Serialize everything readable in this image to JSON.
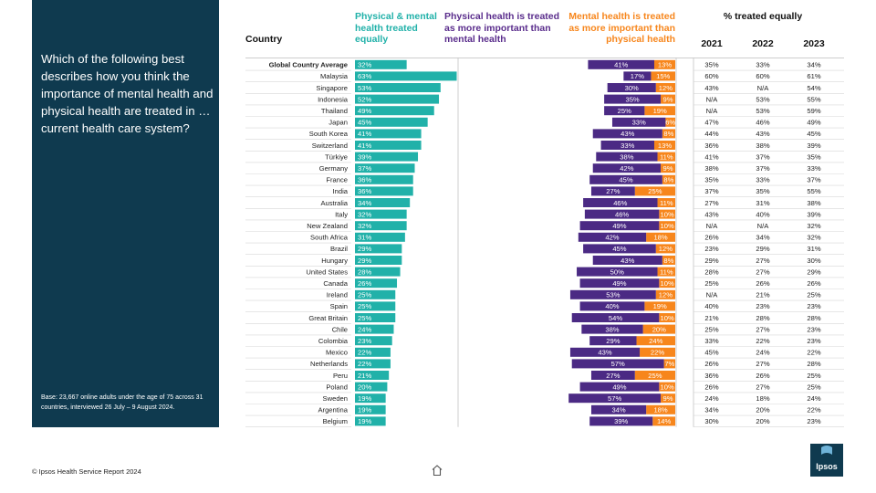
{
  "question": "Which of the following best describes how you think the importance of mental health and physical health are treated in … current health care system?",
  "base_note": "Base: 23,667 online adults under the age of 75 across 31 countries, interviewed 26 July – 9 August 2024.",
  "footer": "© Ipsos Health Service Report 2024",
  "logo_text": "Ipsos",
  "colors": {
    "equal": "#21b1a9",
    "physical": "#4b2a84",
    "mental": "#f7861c",
    "panel": "#0f3a4f"
  },
  "headers": {
    "country": "Country",
    "equal": "Physical & mental health treated equally",
    "physical": "Physical health is treated as more important than mental health",
    "mental": "Mental health is treated as more important than physical health",
    "pct_equal": "% treated equally",
    "years": [
      "2021",
      "2022",
      "2023"
    ]
  },
  "chart_data": {
    "type": "bar",
    "categories": [
      "Global Country Average",
      "Malaysia",
      "Singapore",
      "Indonesia",
      "Thailand",
      "Japan",
      "South Korea",
      "Switzerland",
      "Türkiye",
      "Germany",
      "France",
      "India",
      "Australia",
      "Italy",
      "New Zealand",
      "South Africa",
      "Brazil",
      "Hungary",
      "United States",
      "Canada",
      "Ireland",
      "Spain",
      "Great Britain",
      "Chile",
      "Colombia",
      "Mexico",
      "Netherlands",
      "Peru",
      "Poland",
      "Sweden",
      "Argentina",
      "Belgium"
    ],
    "series": [
      {
        "name": "Physical & mental health treated equally",
        "values": [
          32,
          63,
          53,
          52,
          49,
          45,
          41,
          41,
          39,
          37,
          36,
          36,
          34,
          32,
          32,
          31,
          29,
          29,
          28,
          26,
          25,
          25,
          25,
          24,
          23,
          22,
          22,
          21,
          20,
          19,
          19,
          19
        ]
      },
      {
        "name": "Physical health is treated as more important than mental health",
        "values": [
          41,
          17,
          30,
          35,
          25,
          33,
          43,
          33,
          38,
          42,
          45,
          27,
          46,
          46,
          49,
          42,
          45,
          43,
          50,
          49,
          53,
          40,
          54,
          38,
          29,
          43,
          57,
          27,
          49,
          57,
          34,
          39
        ]
      },
      {
        "name": "Mental health is treated as more important than physical health",
        "values": [
          13,
          15,
          12,
          9,
          19,
          6,
          8,
          13,
          11,
          9,
          8,
          25,
          11,
          10,
          10,
          18,
          12,
          8,
          11,
          10,
          12,
          19,
          10,
          20,
          24,
          22,
          7,
          25,
          10,
          9,
          18,
          14
        ]
      }
    ],
    "history": {
      "2021": [
        "35%",
        "60%",
        "43%",
        "N/A",
        "N/A",
        "47%",
        "44%",
        "36%",
        "41%",
        "38%",
        "35%",
        "37%",
        "27%",
        "43%",
        "N/A",
        "26%",
        "23%",
        "29%",
        "28%",
        "25%",
        "N/A",
        "40%",
        "21%",
        "25%",
        "33%",
        "45%",
        "26%",
        "36%",
        "26%",
        "24%",
        "34%",
        "30%"
      ],
      "2022": [
        "33%",
        "60%",
        "N/A",
        "53%",
        "53%",
        "46%",
        "43%",
        "38%",
        "37%",
        "37%",
        "33%",
        "35%",
        "31%",
        "40%",
        "N/A",
        "34%",
        "29%",
        "27%",
        "27%",
        "26%",
        "21%",
        "23%",
        "28%",
        "27%",
        "22%",
        "24%",
        "27%",
        "26%",
        "27%",
        "18%",
        "20%",
        "20%"
      ],
      "2023": [
        "34%",
        "61%",
        "54%",
        "55%",
        "59%",
        "49%",
        "45%",
        "39%",
        "35%",
        "33%",
        "37%",
        "55%",
        "38%",
        "39%",
        "32%",
        "32%",
        "31%",
        "30%",
        "29%",
        "26%",
        "25%",
        "23%",
        "28%",
        "23%",
        "23%",
        "22%",
        "28%",
        "25%",
        "25%",
        "24%",
        "22%",
        "23%"
      ]
    }
  }
}
